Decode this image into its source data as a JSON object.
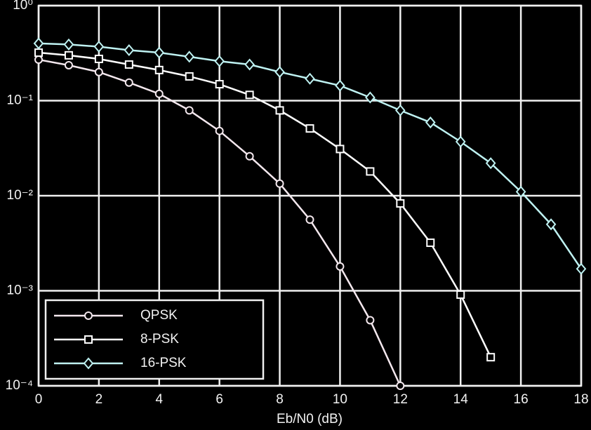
{
  "chart_data": {
    "type": "line",
    "xlabel": "Eb/N0 (dB)",
    "x": [
      0,
      1,
      2,
      3,
      4,
      5,
      6,
      7,
      8,
      9,
      10,
      11,
      12,
      13,
      14,
      15,
      16,
      17,
      18
    ],
    "series": [
      {
        "name": "QPSK",
        "color": "#f4e8ee",
        "marker": "circle",
        "values": [
          0.27,
          0.236,
          0.2,
          0.155,
          0.118,
          0.079,
          0.048,
          0.026,
          0.0134,
          0.0056,
          0.0018,
          0.00049,
          0.0001,
          null,
          null,
          null,
          null,
          null,
          null
        ]
      },
      {
        "name": "8-PSK",
        "color": "#ffffff",
        "marker": "square",
        "values": [
          0.32,
          0.3,
          0.275,
          0.24,
          0.21,
          0.18,
          0.149,
          0.115,
          0.079,
          0.051,
          0.031,
          0.018,
          0.0083,
          0.0032,
          0.00091,
          0.0002,
          null,
          null,
          null
        ]
      },
      {
        "name": "16-PSK",
        "color": "#bff2f2",
        "marker": "diamond",
        "values": [
          0.4,
          0.39,
          0.37,
          0.34,
          0.32,
          0.29,
          0.26,
          0.24,
          0.2,
          0.17,
          0.144,
          0.108,
          0.079,
          0.059,
          0.037,
          0.022,
          0.011,
          0.005,
          0.0017
        ]
      }
    ],
    "xlim": [
      0,
      18
    ],
    "xticks": [
      0,
      2,
      4,
      6,
      8,
      10,
      12,
      14,
      16,
      18
    ],
    "ylim": [
      0.0001,
      1
    ],
    "yscale": "log",
    "yticks": [
      {
        "value": 1,
        "label": "10⁰"
      },
      {
        "value": 0.1,
        "label": "10⁻¹"
      },
      {
        "value": 0.01,
        "label": "10⁻²"
      },
      {
        "value": 0.001,
        "label": "10⁻³"
      },
      {
        "value": 0.0001,
        "label": "10⁻⁴"
      }
    ],
    "grid": true,
    "legend": "lower left"
  }
}
